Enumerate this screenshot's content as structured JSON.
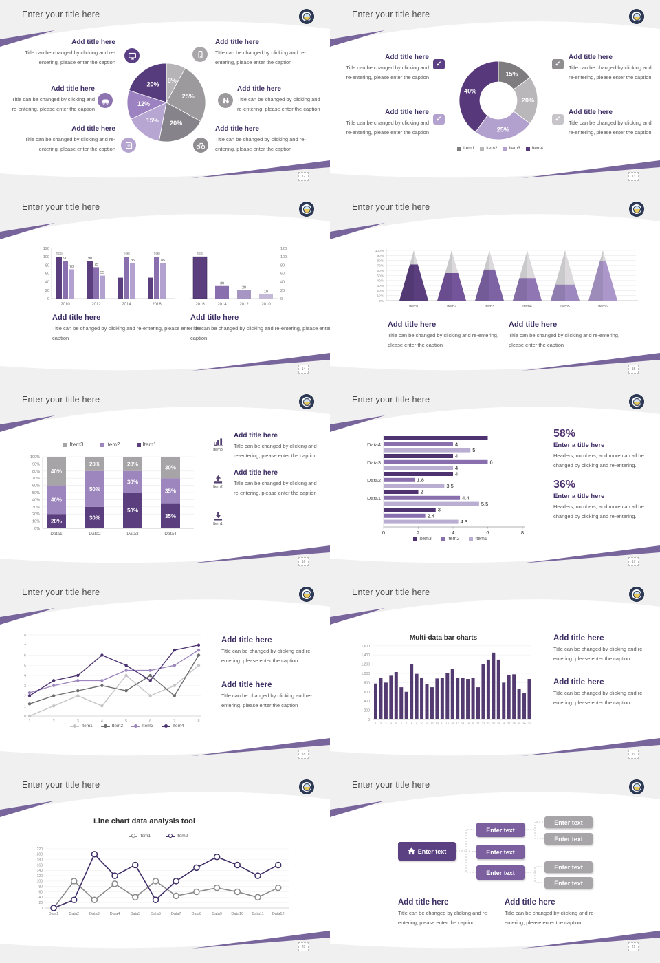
{
  "shared": {
    "slide_title": "Enter your title here",
    "add_title": "Add title here",
    "caption": "Title can be changed by clicking and re-entering, please enter the caption",
    "stat_body": "Headers, numbers, and more can all be changed by clicking and re-entering.",
    "enter_title": "Enter a title here",
    "colors": {
      "accent_dark": "#4f3370",
      "accent": "#7c5fa0",
      "accent_light": "#b3a2cf",
      "swoosh": "#77659b",
      "gray_dark": "#7e7c7f",
      "gray_light": "#b7b5b8",
      "title_text": "#474747",
      "block_title_text": "#3c2e63",
      "caption_text": "#575757"
    }
  },
  "icons": {
    "check": "✓",
    "names": [
      "monitor-icon",
      "smartphone-icon",
      "car-icon",
      "binoculars-icon",
      "book-icon",
      "bicycle-icon",
      "checkbox-icon",
      "bar-chart-icon",
      "upload-icon",
      "download-icon",
      "home-icon",
      "school-logo"
    ]
  },
  "slides": {
    "s12": {
      "page": "12"
    },
    "s13": {
      "page": "13"
    },
    "s14": {
      "page": "14"
    },
    "s15": {
      "page": "15"
    },
    "s16": {
      "page": "16",
      "items": [
        {
          "label": "Item3"
        },
        {
          "label": "Item2"
        },
        {
          "label": "Item1"
        }
      ]
    },
    "s17": {
      "page": "17",
      "stats": [
        {
          "pct": "58%",
          "title": "Enter a title here",
          "body": "Headers, numbers, and more can all be changed by clicking and re-entering."
        },
        {
          "pct": "36%",
          "title": "Enter a title here",
          "body": "Headers, numbers, and more can all be changed by clicking and re-entering."
        }
      ]
    },
    "s18": {
      "page": "18"
    },
    "s19": {
      "page": "19"
    },
    "s20": {
      "page": "20"
    },
    "s21": {
      "page": "21"
    }
  },
  "chart_data": {
    "s12_pie": {
      "type": "pie",
      "slices": [
        {
          "label": "8%",
          "value": 8,
          "color": "#b6b4b7"
        },
        {
          "label": "25%",
          "value": 25,
          "color": "#9c9a9d"
        },
        {
          "label": "20%",
          "value": 20,
          "color": "#86848a"
        },
        {
          "label": "15%",
          "value": 15,
          "color": "#b7a6d2"
        },
        {
          "label": "12%",
          "value": 12,
          "color": "#9c82c0"
        },
        {
          "label": "20%",
          "value": 20,
          "color": "#573c7d"
        }
      ]
    },
    "s13_donut": {
      "type": "pie",
      "donut": true,
      "slices": [
        {
          "label": "15%",
          "value": 15,
          "color": "#7e7c7f"
        },
        {
          "label": "20%",
          "value": 20,
          "color": "#b9b7ba"
        },
        {
          "label": "25%",
          "value": 25,
          "color": "#b2a1ce"
        },
        {
          "label": "40%",
          "value": 40,
          "color": "#57397b"
        }
      ],
      "legend": [
        {
          "name": "Item1",
          "color": "#7e7c7f"
        },
        {
          "name": "Item2",
          "color": "#b9b7ba"
        },
        {
          "name": "Item3",
          "color": "#b2a1ce"
        },
        {
          "name": "Item4",
          "color": "#57397b"
        }
      ]
    },
    "s14_left": {
      "type": "bar",
      "categories": [
        "2010",
        "2012",
        "2014",
        "2016"
      ],
      "yticks": [
        "0",
        "20",
        "40",
        "60",
        "80",
        "100",
        "120"
      ],
      "ymax": 120,
      "series_colors": [
        "#5a3e7e",
        "#8a6fae",
        "#b3a2cf"
      ],
      "values": [
        [
          100,
          90,
          70
        ],
        [
          90,
          75,
          55
        ],
        [
          50,
          100,
          85
        ],
        [
          50,
          100,
          85
        ]
      ],
      "labels": [
        [
          "100",
          "90",
          "70"
        ],
        [
          "90",
          "75",
          "55"
        ],
        [
          "",
          "100",
          "85"
        ],
        [
          "",
          "100",
          "85"
        ]
      ]
    },
    "s14_right": {
      "type": "bar",
      "categories": [
        "2016",
        "2014",
        "2012",
        "2010"
      ],
      "values": [
        100,
        30,
        20,
        10
      ],
      "labels": [
        "100",
        "30",
        "20",
        "10"
      ],
      "colors": [
        "#5a3e7e",
        "#8a6fae",
        "#a795c4",
        "#c4bad8"
      ],
      "yticks": [
        "0",
        "20",
        "40",
        "60",
        "80",
        "100",
        "120"
      ],
      "ymax": 120
    },
    "s15_cones": {
      "type": "bar",
      "subtype": "cone",
      "items": [
        "Item1",
        "Item2",
        "Item3",
        "Item4",
        "Item5",
        "Item6"
      ],
      "fill_pct": [
        72,
        55,
        62,
        45,
        32,
        78
      ],
      "colors": [
        "#5a3e7e",
        "#74549b",
        "#7d63a4",
        "#9077b4",
        "#9d88bf",
        "#ab97c9"
      ],
      "top_color": "#dbd9dc",
      "yticks": [
        "0%",
        "10%",
        "20%",
        "30%",
        "40%",
        "50%",
        "60%",
        "70%",
        "80%",
        "90%",
        "100%"
      ]
    },
    "s16_stack": {
      "type": "bar",
      "subtype": "stacked-100",
      "categories": [
        "Data1",
        "Data2",
        "Data3",
        "Data4"
      ],
      "series": [
        {
          "name": "Item1",
          "color": "#5a3e7e",
          "values": [
            20,
            30,
            50,
            35
          ]
        },
        {
          "name": "Item2",
          "color": "#9d86bd",
          "values": [
            40,
            50,
            30,
            35
          ]
        },
        {
          "name": "Item3",
          "color": "#a6a4a7",
          "values": [
            40,
            20,
            20,
            30
          ]
        }
      ],
      "legend": [
        {
          "name": "Item3",
          "color": "#a6a4a7"
        },
        {
          "name": "Item2",
          "color": "#9d86bd"
        },
        {
          "name": "Item1",
          "color": "#5a3e7e"
        }
      ],
      "yticks": [
        "0%",
        "10%",
        "20%",
        "30%",
        "40%",
        "50%",
        "60%",
        "70%",
        "80%",
        "90%",
        "100%"
      ]
    },
    "s17_hbar": {
      "type": "bar",
      "subtype": "horizontal-grouped",
      "groups": [
        {
          "label": "Data4",
          "values": [
            6,
            4,
            5
          ]
        },
        {
          "label": "Data3",
          "values": [
            4,
            6,
            4
          ]
        },
        {
          "label": "Data2",
          "values": [
            4,
            1.8,
            3.5
          ]
        },
        {
          "label": "Data1",
          "values": [
            2,
            4.4,
            5.5
          ]
        },
        {
          "label": "",
          "values": [
            3,
            2.4,
            4.3
          ]
        }
      ],
      "series": [
        {
          "name": "Item3",
          "color": "#4f3370"
        },
        {
          "name": "Item2",
          "color": "#8a6fae"
        },
        {
          "name": "Item1",
          "color": "#b9aed2"
        }
      ],
      "xticks": [
        "0",
        "2",
        "4",
        "6",
        "8"
      ],
      "xmax": 8
    },
    "s18_line": {
      "type": "line",
      "x_labels": [
        "1",
        "2",
        "3",
        "4",
        "5",
        "6",
        "7",
        "8"
      ],
      "yticks": [
        "0",
        "1",
        "2",
        "3",
        "4",
        "5",
        "6",
        "7",
        "8"
      ],
      "ymax": 8,
      "series": [
        {
          "name": "Item1",
          "color": "#c6c4c7",
          "values": [
            0,
            1,
            2,
            1,
            4,
            2,
            3,
            5
          ]
        },
        {
          "name": "Item2",
          "color": "#6e6d70",
          "values": [
            1.2,
            2,
            2.5,
            3,
            2.5,
            4,
            2,
            6
          ]
        },
        {
          "name": "Item3",
          "color": "#9d86bd",
          "values": [
            2.3,
            3,
            3.5,
            3.5,
            4.5,
            4.5,
            5,
            6.5
          ]
        },
        {
          "name": "Item4",
          "color": "#4c3370",
          "values": [
            2,
            3.5,
            4,
            6,
            5,
            3.5,
            6.5,
            7
          ]
        }
      ]
    },
    "s19_bars": {
      "type": "bar",
      "title": "Multi-data bar charts",
      "color": "#533a70",
      "x_labels": [
        "1",
        "2",
        "3",
        "4",
        "5",
        "6",
        "7",
        "8",
        "9",
        "10",
        "11",
        "12",
        "13",
        "14",
        "15",
        "16",
        "17",
        "18",
        "19",
        "20",
        "21",
        "22",
        "23",
        "24",
        "25",
        "26",
        "27",
        "28",
        "29",
        "30",
        "31"
      ],
      "yticks": [
        "0",
        "200",
        "400",
        "600",
        "800",
        "1,000",
        "1,200",
        "1,400",
        "1,600"
      ],
      "ymax": 1600,
      "values": [
        780,
        900,
        800,
        950,
        1030,
        700,
        600,
        1200,
        990,
        900,
        770,
        700,
        890,
        900,
        1010,
        1100,
        900,
        900,
        880,
        900,
        700,
        1200,
        1300,
        1450,
        1300,
        800,
        970,
        980,
        660,
        580,
        880
      ]
    },
    "s20_line": {
      "type": "line",
      "title": "Line chart data analysis tool",
      "categories": [
        "Data1",
        "Data2",
        "Data3",
        "Data4",
        "Data5",
        "Data6",
        "Data7",
        "Data8",
        "Data9",
        "Data10",
        "Data11",
        "Data12"
      ],
      "yticks": [
        "0",
        "20",
        "40",
        "60",
        "80",
        "100",
        "120",
        "140",
        "160",
        "180",
        "200",
        "220"
      ],
      "ymax": 220,
      "series": [
        {
          "name": "Item1",
          "color": "#8a888b",
          "values": [
            0,
            100,
            30,
            90,
            40,
            100,
            45,
            60,
            75,
            60,
            40,
            75
          ]
        },
        {
          "name": "Item2",
          "color": "#3f2d66",
          "values": [
            0,
            30,
            200,
            120,
            160,
            30,
            100,
            150,
            190,
            160,
            120,
            160
          ]
        }
      ]
    },
    "s21_org": {
      "type": "org-chart",
      "root": "Enter text",
      "mid": [
        "Enter text",
        "Enter text",
        "Enter text"
      ],
      "leaves": [
        "Enter text",
        "Enter text",
        "Enter text",
        "Enter text"
      ]
    }
  }
}
